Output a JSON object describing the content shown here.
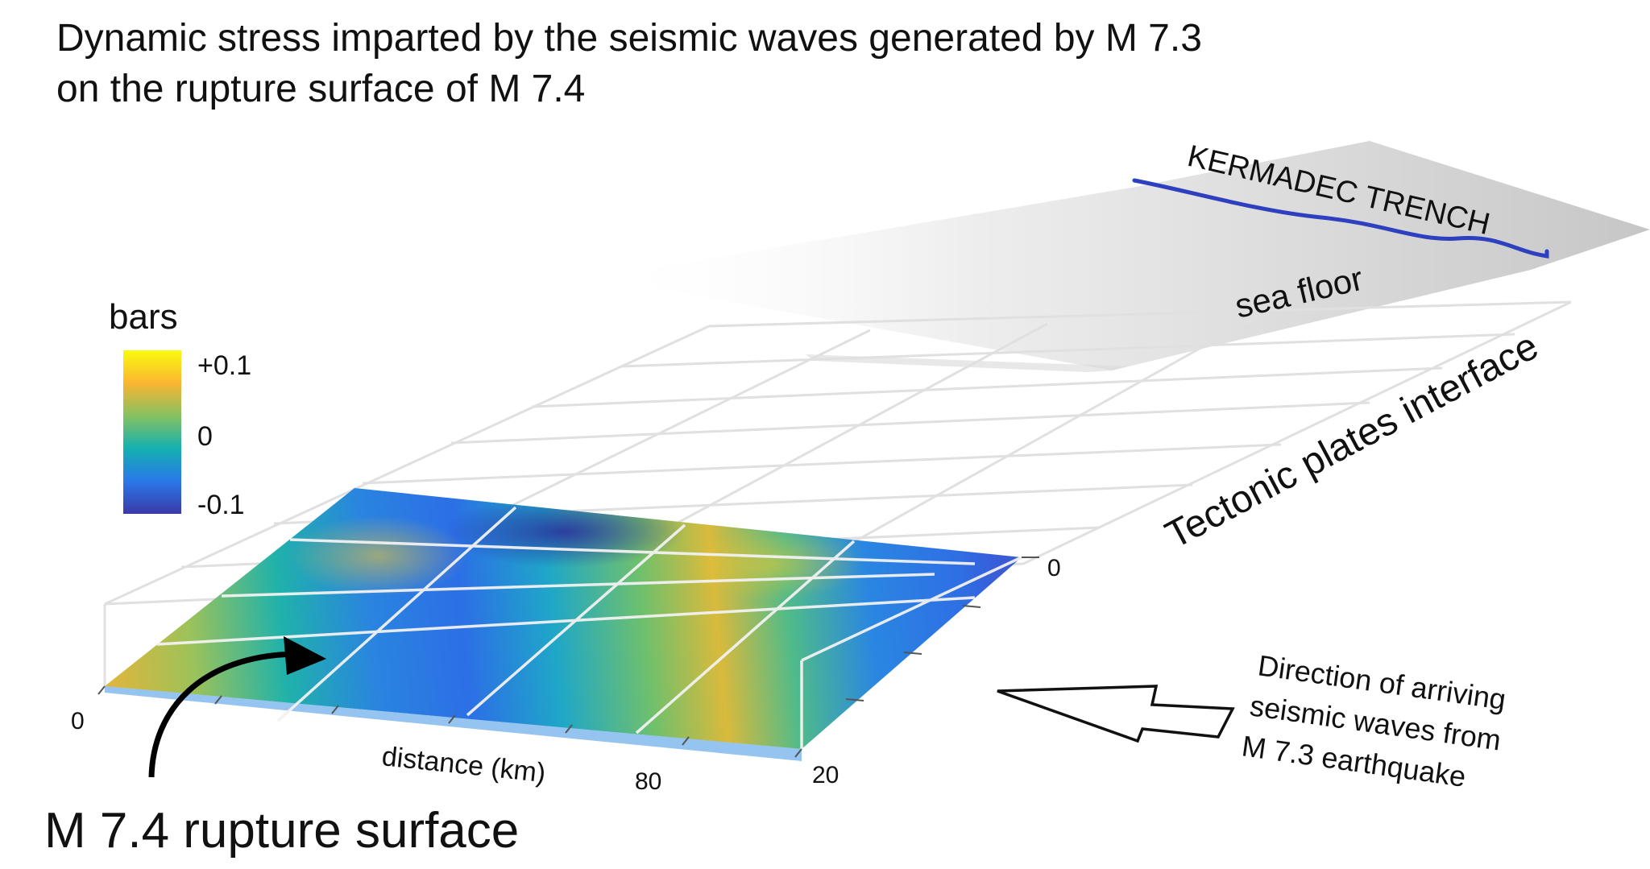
{
  "title": {
    "line1": "Dynamic stress imparted by the seismic waves generated by M 7.3",
    "line2": "on the rupture surface of M 7.4"
  },
  "colorbar": {
    "unit": "bars",
    "tick_max": "+0.1",
    "tick_mid": "0",
    "tick_min": "-0.1",
    "colors": [
      "#f9fb0e",
      "#fbb530",
      "#86c160",
      "#14b1b0",
      "#2a78ea",
      "#3b3aa8"
    ]
  },
  "labels": {
    "trench": "KERMADEC TRENCH",
    "sea_floor": "sea floor",
    "interface": "Tectonic plates interface",
    "rupture": "M 7.4 rupture surface",
    "direction_line1": "Direction of arriving",
    "direction_line2": "seismic waves from",
    "direction_line3": "M 7.3 earthquake"
  },
  "axes": {
    "x_label": "distance (km)",
    "x_tick_0": "0",
    "x_tick_80": "80",
    "y_tick_0": "0",
    "y_tick_20": "20"
  },
  "colors": {
    "trench_line": "#2e3fbf",
    "grid": "#e0e0e0"
  }
}
